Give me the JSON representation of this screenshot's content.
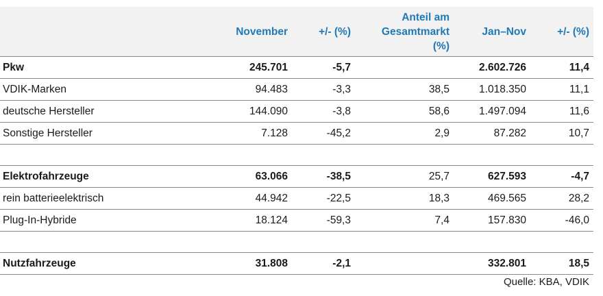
{
  "header": {
    "col_label": "",
    "col_november": "November",
    "col_change1": "+/-  (%)",
    "col_share_line1": "Anteil am",
    "col_share_line2": "Gesamtmarkt",
    "col_share_line3": "(%)",
    "col_jan_nov": "Jan–Nov",
    "col_change2": "+/-  (%)"
  },
  "rows": [
    {
      "label": "Pkw",
      "november": "245.701",
      "change1": "-5,7",
      "share": "",
      "jan_nov": "2.602.726",
      "change2": "11,4"
    },
    {
      "label": "VDIK-Marken",
      "november": "94.483",
      "change1": "-3,3",
      "share": "38,5",
      "jan_nov": "1.018.350",
      "change2": "11,1"
    },
    {
      "label": "deutsche Hersteller",
      "november": "144.090",
      "change1": "-3,8",
      "share": "58,6",
      "jan_nov": "1.497.094",
      "change2": "11,6"
    },
    {
      "label": "Sonstige Hersteller",
      "november": "7.128",
      "change1": "-45,2",
      "share": "2,9",
      "jan_nov": "87.282",
      "change2": "10,7"
    },
    {
      "label": "Elektrofahrzeuge",
      "november": "63.066",
      "change1": "-38,5",
      "share": "25,7",
      "jan_nov": "627.593",
      "change2": "-4,7"
    },
    {
      "label": "rein batterieelektrisch",
      "november": "44.942",
      "change1": "-22,5",
      "share": "18,3",
      "jan_nov": "469.565",
      "change2": "28,2"
    },
    {
      "label": "Plug-In-Hybride",
      "november": "18.124",
      "change1": "-59,3",
      "share": "7,4",
      "jan_nov": "157.830",
      "change2": "-46,0"
    },
    {
      "label": "Nutzfahrzeuge",
      "november": "31.808",
      "change1": "-2,1",
      "share": "",
      "jan_nov": "332.801",
      "change2": "18,5"
    }
  ],
  "source": "Quelle: KBA, VDIK",
  "colors": {
    "header_text": "#1f7ab5",
    "header_bg": "#f2f2f2",
    "rule": "#8a8a8a"
  }
}
